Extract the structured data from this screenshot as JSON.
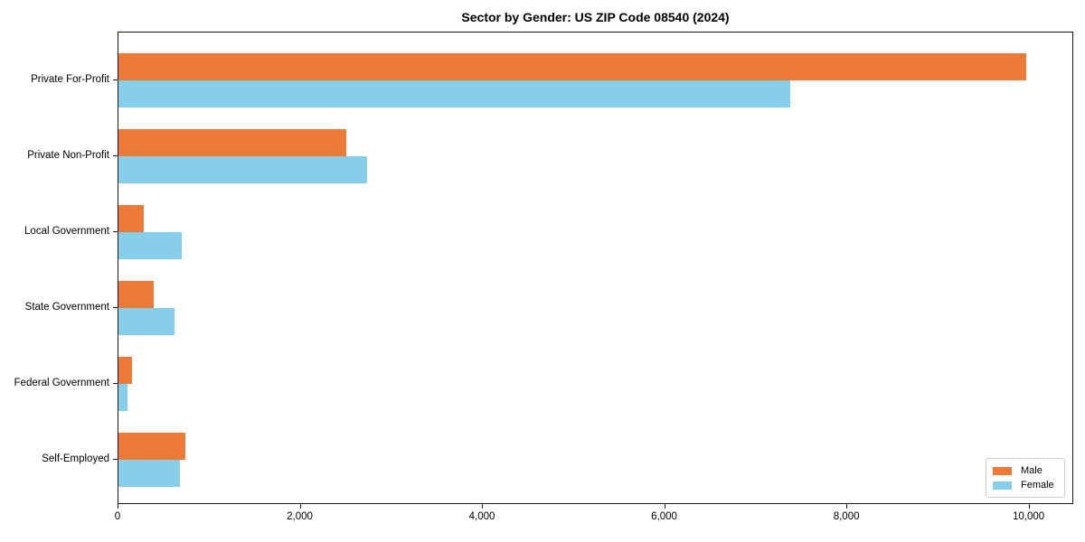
{
  "chart_data": {
    "type": "bar",
    "orientation": "horizontal",
    "title": "Sector by Gender: US ZIP Code 08540 (2024)",
    "categories": [
      "Private For-Profit",
      "Private Non-Profit",
      "Local Government",
      "State Government",
      "Federal Government",
      "Self-Employed"
    ],
    "series": [
      {
        "name": "Male",
        "color": "#ED7A39",
        "values": [
          9960,
          2500,
          280,
          390,
          150,
          730
        ]
      },
      {
        "name": "Female",
        "color": "#87CEEB",
        "values": [
          7370,
          2730,
          690,
          620,
          100,
          670
        ]
      }
    ],
    "xlabel": "",
    "ylabel": "",
    "xlim": [
      0,
      10490
    ],
    "xticks": [
      0,
      2000,
      4000,
      6000,
      8000,
      10000
    ],
    "xtick_labels": [
      "0",
      "2,000",
      "4,000",
      "6,000",
      "8,000",
      "10,000"
    ],
    "grid": false,
    "legend_position": "lower right"
  }
}
